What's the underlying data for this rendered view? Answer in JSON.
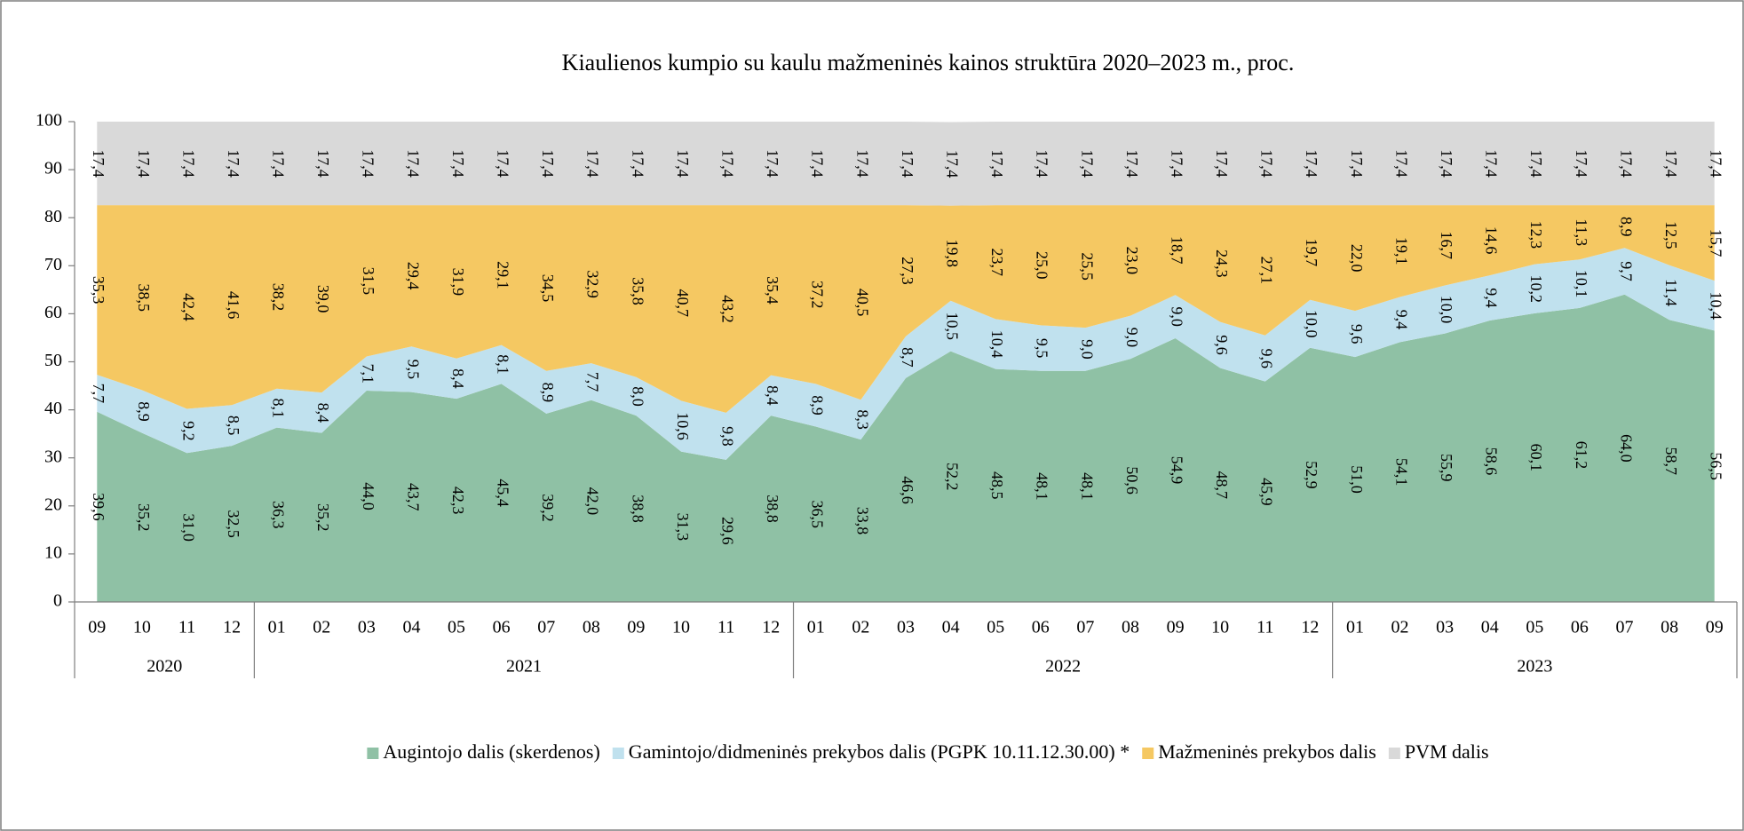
{
  "chart_data": {
    "type": "stacked_area",
    "title": "Kiaulienos kumpio su kaulu mažmeninės kainos struktūra 2020–2023 m., proc.",
    "groups": [
      {
        "label": "2020",
        "categories": [
          "09",
          "10",
          "11",
          "12"
        ]
      },
      {
        "label": "2021",
        "categories": [
          "01",
          "02",
          "03",
          "04",
          "05",
          "06",
          "07",
          "08",
          "09",
          "10",
          "11",
          "12"
        ]
      },
      {
        "label": "2022",
        "categories": [
          "01",
          "02",
          "03",
          "04",
          "05",
          "06",
          "07",
          "08",
          "09",
          "10",
          "11",
          "12"
        ]
      },
      {
        "label": "2023",
        "categories": [
          "01",
          "02",
          "03",
          "04",
          "05",
          "06",
          "07",
          "08",
          "09"
        ]
      }
    ],
    "series": [
      {
        "name": "Augintojo dalis (skerdenos)",
        "color": "#8fc1a5",
        "values": [
          39.6,
          35.2,
          31.0,
          32.5,
          36.3,
          35.2,
          44.0,
          43.7,
          42.3,
          45.4,
          39.2,
          42.0,
          38.8,
          31.3,
          29.6,
          38.8,
          36.5,
          33.8,
          46.6,
          52.2,
          48.5,
          48.1,
          48.1,
          50.6,
          54.9,
          48.7,
          45.9,
          52.9,
          51.0,
          54.1,
          55.9,
          58.6,
          60.1,
          61.2,
          64.0,
          58.7,
          56.5
        ],
        "value_labels": [
          "39,6",
          "35,2",
          "31,0",
          "32,5",
          "36,3",
          "35,2",
          "44,0",
          "43,7",
          "42,3",
          "45,4",
          "39,2",
          "42,0",
          "38,8",
          "31,3",
          "29,6",
          "38,8",
          "36,5",
          "33,8",
          "46,6",
          "52,2",
          "48,5",
          "48,1",
          "48,1",
          "50,6",
          "54,9",
          "48,7",
          "45,9",
          "52,9",
          "51,0",
          "54,1",
          "55,9",
          "58,6",
          "60,1",
          "61,2",
          "64,0",
          "58,7",
          "56,5"
        ]
      },
      {
        "name": "Gamintojo/didmeninės prekybos dalis (PGPK 10.11.12.30.00) *",
        "color": "#c0e1ee",
        "values": [
          7.7,
          8.9,
          9.2,
          8.5,
          8.1,
          8.4,
          7.1,
          9.5,
          8.4,
          8.1,
          8.9,
          7.7,
          8.0,
          10.6,
          9.8,
          8.4,
          8.9,
          8.3,
          8.7,
          10.5,
          10.4,
          9.5,
          9.0,
          9.0,
          9.0,
          9.6,
          9.6,
          10.0,
          9.6,
          9.4,
          10.0,
          9.4,
          10.2,
          10.1,
          9.7,
          11.4,
          10.4
        ],
        "value_labels": [
          "7,7",
          "8,9",
          "9,2",
          "8,5",
          "8,1",
          "8,4",
          "7,1",
          "9,5",
          "8,4",
          "8,1",
          "8,9",
          "7,7",
          "8,0",
          "10,6",
          "9,8",
          "8,4",
          "8,9",
          "8,3",
          "8,7",
          "10,5",
          "10,4",
          "9,5",
          "9,0",
          "9,0",
          "9,0",
          "9,6",
          "9,6",
          "10,0",
          "9,6",
          "9,4",
          "10,0",
          "9,4",
          "10,2",
          "10,1",
          "9,7",
          "11,4",
          "10,4"
        ]
      },
      {
        "name": "Mažmeninės prekybos dalis",
        "color": "#f5c862",
        "values": [
          35.3,
          38.5,
          42.4,
          41.6,
          38.2,
          39.0,
          31.5,
          29.4,
          31.9,
          29.1,
          34.5,
          32.9,
          35.8,
          40.7,
          43.2,
          35.4,
          37.2,
          40.5,
          27.3,
          19.8,
          23.7,
          25.0,
          25.5,
          23.0,
          18.7,
          24.3,
          27.1,
          19.7,
          22.0,
          19.1,
          16.7,
          14.6,
          12.3,
          11.3,
          8.9,
          12.5,
          15.7
        ],
        "value_labels": [
          "35,3",
          "38,5",
          "42,4",
          "41,6",
          "38,2",
          "39,0",
          "31,5",
          "29,4",
          "31,9",
          "29,1",
          "34,5",
          "32,9",
          "35,8",
          "40,7",
          "43,2",
          "35,4",
          "37,2",
          "40,5",
          "27,3",
          "19,8",
          "23,7",
          "25,0",
          "25,5",
          "23,0",
          "18,7",
          "24,3",
          "27,1",
          "19,7",
          "22,0",
          "19,1",
          "16,7",
          "14,6",
          "12,3",
          "11,3",
          "8,9",
          "12,5",
          "15,7"
        ]
      },
      {
        "name": "PVM dalis",
        "color": "#d9d9d9",
        "values": [
          17.4,
          17.4,
          17.4,
          17.4,
          17.4,
          17.4,
          17.4,
          17.4,
          17.4,
          17.4,
          17.4,
          17.4,
          17.4,
          17.4,
          17.4,
          17.4,
          17.4,
          17.4,
          17.4,
          17.4,
          17.4,
          17.4,
          17.4,
          17.4,
          17.4,
          17.4,
          17.4,
          17.4,
          17.4,
          17.4,
          17.4,
          17.4,
          17.4,
          17.4,
          17.4,
          17.4,
          17.4
        ],
        "value_labels": [
          "17,4",
          "17,4",
          "17,4",
          "17,4",
          "17,4",
          "17,4",
          "17,4",
          "17,4",
          "17,4",
          "17,4",
          "17,4",
          "17,4",
          "17,4",
          "17,4",
          "17,4",
          "17,4",
          "17,4",
          "17,4",
          "17,4",
          "17,4",
          "17,4",
          "17,4",
          "17,4",
          "17,4",
          "17,4",
          "17,4",
          "17,4",
          "17,4",
          "17,4",
          "17,4",
          "17,4",
          "17,4",
          "17,4",
          "17,4",
          "17,4",
          "17,4",
          "17,4"
        ]
      }
    ],
    "ylim": [
      0,
      100
    ],
    "yticks": [
      0,
      10,
      20,
      30,
      40,
      50,
      60,
      70,
      80,
      90,
      100
    ],
    "grid": false,
    "legend": "bottom"
  }
}
